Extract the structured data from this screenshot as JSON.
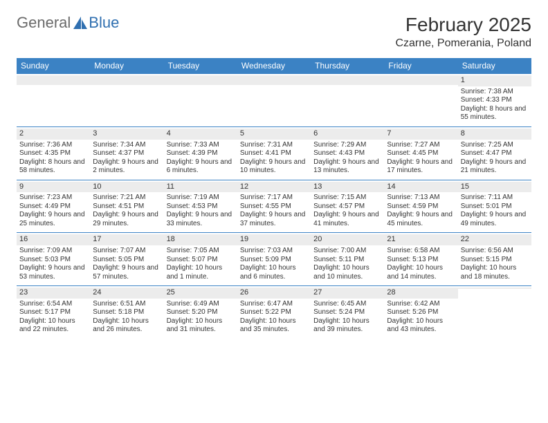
{
  "logo": {
    "text1": "General",
    "text2": "Blue"
  },
  "title": "February 2025",
  "location": "Czarne, Pomerania, Poland",
  "colors": {
    "header_bg": "#3b82c4",
    "header_text": "#ffffff",
    "daynum_bg": "#ececec",
    "cell_border": "#3b82c4",
    "logo_gray": "#6a6a6a",
    "logo_blue": "#2f6fb0",
    "text": "#333333",
    "background": "#ffffff"
  },
  "weekdays": [
    "Sunday",
    "Monday",
    "Tuesday",
    "Wednesday",
    "Thursday",
    "Friday",
    "Saturday"
  ],
  "cells": [
    {
      "day": "",
      "sunrise": "",
      "sunset": "",
      "daylight": ""
    },
    {
      "day": "",
      "sunrise": "",
      "sunset": "",
      "daylight": ""
    },
    {
      "day": "",
      "sunrise": "",
      "sunset": "",
      "daylight": ""
    },
    {
      "day": "",
      "sunrise": "",
      "sunset": "",
      "daylight": ""
    },
    {
      "day": "",
      "sunrise": "",
      "sunset": "",
      "daylight": ""
    },
    {
      "day": "",
      "sunrise": "",
      "sunset": "",
      "daylight": ""
    },
    {
      "day": "1",
      "sunrise": "Sunrise: 7:38 AM",
      "sunset": "Sunset: 4:33 PM",
      "daylight": "Daylight: 8 hours and 55 minutes."
    },
    {
      "day": "2",
      "sunrise": "Sunrise: 7:36 AM",
      "sunset": "Sunset: 4:35 PM",
      "daylight": "Daylight: 8 hours and 58 minutes."
    },
    {
      "day": "3",
      "sunrise": "Sunrise: 7:34 AM",
      "sunset": "Sunset: 4:37 PM",
      "daylight": "Daylight: 9 hours and 2 minutes."
    },
    {
      "day": "4",
      "sunrise": "Sunrise: 7:33 AM",
      "sunset": "Sunset: 4:39 PM",
      "daylight": "Daylight: 9 hours and 6 minutes."
    },
    {
      "day": "5",
      "sunrise": "Sunrise: 7:31 AM",
      "sunset": "Sunset: 4:41 PM",
      "daylight": "Daylight: 9 hours and 10 minutes."
    },
    {
      "day": "6",
      "sunrise": "Sunrise: 7:29 AM",
      "sunset": "Sunset: 4:43 PM",
      "daylight": "Daylight: 9 hours and 13 minutes."
    },
    {
      "day": "7",
      "sunrise": "Sunrise: 7:27 AM",
      "sunset": "Sunset: 4:45 PM",
      "daylight": "Daylight: 9 hours and 17 minutes."
    },
    {
      "day": "8",
      "sunrise": "Sunrise: 7:25 AM",
      "sunset": "Sunset: 4:47 PM",
      "daylight": "Daylight: 9 hours and 21 minutes."
    },
    {
      "day": "9",
      "sunrise": "Sunrise: 7:23 AM",
      "sunset": "Sunset: 4:49 PM",
      "daylight": "Daylight: 9 hours and 25 minutes."
    },
    {
      "day": "10",
      "sunrise": "Sunrise: 7:21 AM",
      "sunset": "Sunset: 4:51 PM",
      "daylight": "Daylight: 9 hours and 29 minutes."
    },
    {
      "day": "11",
      "sunrise": "Sunrise: 7:19 AM",
      "sunset": "Sunset: 4:53 PM",
      "daylight": "Daylight: 9 hours and 33 minutes."
    },
    {
      "day": "12",
      "sunrise": "Sunrise: 7:17 AM",
      "sunset": "Sunset: 4:55 PM",
      "daylight": "Daylight: 9 hours and 37 minutes."
    },
    {
      "day": "13",
      "sunrise": "Sunrise: 7:15 AM",
      "sunset": "Sunset: 4:57 PM",
      "daylight": "Daylight: 9 hours and 41 minutes."
    },
    {
      "day": "14",
      "sunrise": "Sunrise: 7:13 AM",
      "sunset": "Sunset: 4:59 PM",
      "daylight": "Daylight: 9 hours and 45 minutes."
    },
    {
      "day": "15",
      "sunrise": "Sunrise: 7:11 AM",
      "sunset": "Sunset: 5:01 PM",
      "daylight": "Daylight: 9 hours and 49 minutes."
    },
    {
      "day": "16",
      "sunrise": "Sunrise: 7:09 AM",
      "sunset": "Sunset: 5:03 PM",
      "daylight": "Daylight: 9 hours and 53 minutes."
    },
    {
      "day": "17",
      "sunrise": "Sunrise: 7:07 AM",
      "sunset": "Sunset: 5:05 PM",
      "daylight": "Daylight: 9 hours and 57 minutes."
    },
    {
      "day": "18",
      "sunrise": "Sunrise: 7:05 AM",
      "sunset": "Sunset: 5:07 PM",
      "daylight": "Daylight: 10 hours and 1 minute."
    },
    {
      "day": "19",
      "sunrise": "Sunrise: 7:03 AM",
      "sunset": "Sunset: 5:09 PM",
      "daylight": "Daylight: 10 hours and 6 minutes."
    },
    {
      "day": "20",
      "sunrise": "Sunrise: 7:00 AM",
      "sunset": "Sunset: 5:11 PM",
      "daylight": "Daylight: 10 hours and 10 minutes."
    },
    {
      "day": "21",
      "sunrise": "Sunrise: 6:58 AM",
      "sunset": "Sunset: 5:13 PM",
      "daylight": "Daylight: 10 hours and 14 minutes."
    },
    {
      "day": "22",
      "sunrise": "Sunrise: 6:56 AM",
      "sunset": "Sunset: 5:15 PM",
      "daylight": "Daylight: 10 hours and 18 minutes."
    },
    {
      "day": "23",
      "sunrise": "Sunrise: 6:54 AM",
      "sunset": "Sunset: 5:17 PM",
      "daylight": "Daylight: 10 hours and 22 minutes."
    },
    {
      "day": "24",
      "sunrise": "Sunrise: 6:51 AM",
      "sunset": "Sunset: 5:18 PM",
      "daylight": "Daylight: 10 hours and 26 minutes."
    },
    {
      "day": "25",
      "sunrise": "Sunrise: 6:49 AM",
      "sunset": "Sunset: 5:20 PM",
      "daylight": "Daylight: 10 hours and 31 minutes."
    },
    {
      "day": "26",
      "sunrise": "Sunrise: 6:47 AM",
      "sunset": "Sunset: 5:22 PM",
      "daylight": "Daylight: 10 hours and 35 minutes."
    },
    {
      "day": "27",
      "sunrise": "Sunrise: 6:45 AM",
      "sunset": "Sunset: 5:24 PM",
      "daylight": "Daylight: 10 hours and 39 minutes."
    },
    {
      "day": "28",
      "sunrise": "Sunrise: 6:42 AM",
      "sunset": "Sunset: 5:26 PM",
      "daylight": "Daylight: 10 hours and 43 minutes."
    },
    {
      "day": "",
      "sunrise": "",
      "sunset": "",
      "daylight": ""
    }
  ]
}
